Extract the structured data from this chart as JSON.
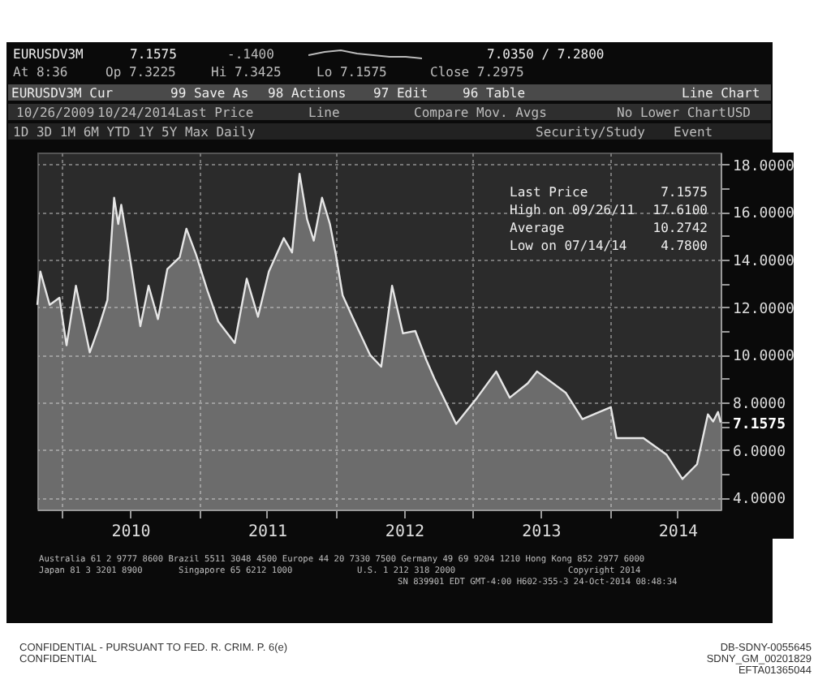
{
  "chart_data": {
    "type": "area",
    "title": "EURUSDV3M",
    "x": [
      "2009-10-26",
      "2009-11-03",
      "2009-11-28",
      "2009-12-24",
      "2010-01-12",
      "2010-02-06",
      "2010-03-15",
      "2010-04-09",
      "2010-05-01",
      "2010-05-19",
      "2010-05-30",
      "2010-06-07",
      "2010-06-28",
      "2010-07-28",
      "2010-08-19",
      "2010-09-13",
      "2010-10-08",
      "2010-11-10",
      "2010-11-28",
      "2010-12-24",
      "2011-01-23",
      "2011-02-21",
      "2011-04-06",
      "2011-05-08",
      "2011-06-07",
      "2011-07-06",
      "2011-08-15",
      "2011-09-06",
      "2011-09-26",
      "2011-10-16",
      "2011-11-03",
      "2011-11-25",
      "2011-12-16",
      "2012-01-01",
      "2012-01-19",
      "2012-02-14",
      "2012-04-01",
      "2012-05-01",
      "2012-05-30",
      "2012-06-28",
      "2012-07-31",
      "2012-08-29",
      "2012-09-20",
      "2012-11-17",
      "2013-01-12",
      "2013-03-04",
      "2013-04-09",
      "2013-05-27",
      "2013-06-21",
      "2013-09-06",
      "2013-10-20",
      "2014-01-04",
      "2014-01-19",
      "2014-04-01",
      "2014-06-02",
      "2014-07-14",
      "2014-08-22",
      "2014-09-20",
      "2014-10-04",
      "2014-10-17",
      "2014-10-24"
    ],
    "series": [
      {
        "color": "#e6e6e6",
        "values": [
          12.1,
          13.5,
          12.1,
          12.4,
          10.4,
          12.9,
          10.1,
          11.2,
          12.3,
          16.6,
          15.5,
          16.3,
          14.3,
          11.2,
          12.9,
          11.5,
          13.6,
          14.1,
          15.3,
          14.2,
          12.7,
          11.4,
          10.5,
          13.2,
          11.6,
          13.5,
          14.9,
          14.3,
          17.61,
          15.7,
          14.8,
          16.6,
          15.5,
          14.2,
          12.5,
          11.6,
          10.0,
          9.5,
          12.9,
          10.9,
          11.0,
          9.8,
          9.0,
          7.1,
          8.2,
          9.3,
          8.2,
          8.8,
          9.3,
          8.4,
          7.3,
          7.8,
          6.5,
          6.5,
          5.8,
          4.78,
          5.4,
          7.5,
          7.2,
          7.6,
          7.1575
        ]
      }
    ],
    "xlim": [
      "2009-10-26",
      "2014-10-24"
    ],
    "xticks": [
      {
        "value": "2010-01-01",
        "label": null
      },
      {
        "value": "2010-07-01",
        "label": "2010"
      },
      {
        "value": "2011-01-01",
        "label": null
      },
      {
        "value": "2011-07-01",
        "label": "2011"
      },
      {
        "value": "2012-01-01",
        "label": null
      },
      {
        "value": "2012-07-01",
        "label": "2012"
      },
      {
        "value": "2013-01-01",
        "label": null
      },
      {
        "value": "2013-07-01",
        "label": "2013"
      },
      {
        "value": "2014-01-01",
        "label": null
      },
      {
        "value": "2014-07-01",
        "label": "2014"
      }
    ],
    "ylim": [
      3.5,
      18.5
    ],
    "yticks": [
      {
        "value": 4,
        "label": "4.0000"
      },
      {
        "value": 5,
        "label": null
      },
      {
        "value": 6,
        "label": "6.0000"
      },
      {
        "value": 7,
        "label": null
      },
      {
        "value": 7.1575,
        "label": "7.1575"
      },
      {
        "value": 8,
        "label": "8.0000"
      },
      {
        "value": 9,
        "label": null
      },
      {
        "value": 10,
        "label": "10.0000"
      },
      {
        "value": 11,
        "label": null
      },
      {
        "value": 12,
        "label": "12.0000"
      },
      {
        "value": 13,
        "label": null
      },
      {
        "value": 14,
        "label": "14.0000"
      },
      {
        "value": 15,
        "label": null
      },
      {
        "value": 16,
        "label": "16.0000"
      },
      {
        "value": 17,
        "label": null
      },
      {
        "value": 18,
        "label": "18.0000"
      }
    ],
    "grid": true,
    "annotations": [
      "7.1575",
      "-.1400",
      "7.0350 / 7.2800",
      "At 8:36",
      "Op 7.3225",
      "Hi 7.3425",
      "Lo 7.1575",
      "Close 7.2975",
      "EURUSDV3M Cur",
      "99 Save As",
      "98 Actions",
      "97 Edit",
      "96 Table",
      "Line Chart",
      "10/26/2009",
      "10/24/2014",
      "Last Price",
      "Line",
      "Compare Mov. Avgs",
      "No Lower Chart",
      "USD",
      "1D 3D 1M 6M YTD 1Y 5Y Max Daily",
      "Security/Study",
      "Event",
      "Last Price",
      "7.1575",
      "High on 09/26/11",
      "17.6100",
      "Average",
      "10.2742",
      "Low on 07/14/14",
      "4.7800",
      "Australia 61 2 9777 8600 Brazil 5511 3048 4500 Europe 44 20 7330 7500 Germany 49 69 9204 1210 Hong Kong 852 2977 6000",
      "Japan 81 3 3201 8900",
      "Singapore 65 6212 1000",
      "U.S. 1 212 318 2000",
      "Copyright 2014",
      "SN 839901 EDT  GMT-4:00 H602-355-3 24-Oct-2014 08:48:34",
      "CONFIDENTIAL - PURSUANT TO FED. R. CRIM. P. 6(e)",
      "CONFIDENTIAL",
      "DB-SDNY-0055645",
      "SDNY_GM_00201829",
      "EFTA01365044"
    ]
  }
}
